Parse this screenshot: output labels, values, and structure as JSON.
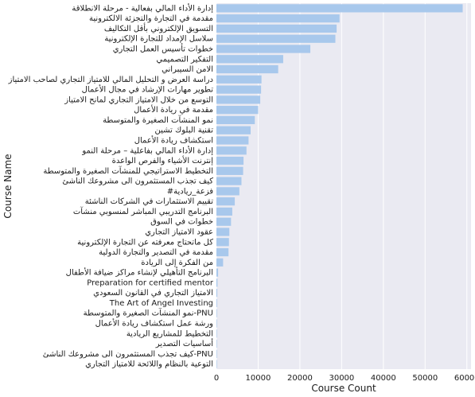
{
  "chart_data": {
    "type": "bar",
    "orientation": "horizontal",
    "title": "",
    "xlabel": "Course Count",
    "ylabel": "Course Name",
    "xlim": [
      0,
      61000
    ],
    "xticks": [
      0,
      10000,
      20000,
      30000,
      40000,
      50000,
      60000
    ],
    "grid": true,
    "bar_color": "#a8c8ec",
    "background": "#eaeaf2",
    "categories": [
      "إدارة الأداء المالي بفعالية - مرحلة الانطلاقة",
      "مقدمة في التجارة والتجزئة الالكترونية",
      "التسويق الإلكتروني بأقل التكاليف",
      "سلاسل الإمداد للتجارة الإلكترونية",
      "خطوات تأسيس العمل التجاري",
      "التفكير التصميمي",
      "الامن السيبراني",
      "دراسة العرض و التحليل المالي للامتياز التجاري لصاحب الامتياز",
      "تطوير مهارات الإرشاد في مجال الأعمال",
      "التوسع من خلال الامتياز التجاري لمانح الامتياز",
      "مقدمة في ريادة الأعمال",
      "نمو المنشآت الصغيرة والمتوسطة",
      "تقنية البلوك تشين",
      "استكشاف ريادة الأعمال",
      "إدارة الأداء المالي بفاعلية – مرحلة النمو",
      "إنترنت الأشياء والفرص الواعدة",
      "التخطيط الاستراتيجي للمنشآت الصغيرة والمتوسطة",
      "كيف تجذب المستثمرون الى مشروعك الناشئ",
      "#فزعة_ريادية",
      "تقييم الاستثمارات في الشركات الناشئة",
      "البرنامج التدريبي المباشر لمنسوبي منشآت",
      "خطوات في السوق",
      "عقود الامتياز التجاري",
      "كل ماتحتاج معرفته عن التجارة الإلكترونية",
      "مقدمة في التصدير والتجارة الدولية",
      "من الفكرة إلى الريادة",
      "البرنامج التأهيلي لإنشاء مراكز ضيافة الأطفال",
      "Preparation for certified mentor",
      "الامتياز التجاري في القانون السعودي",
      "The Art of Angel Investing",
      "نمو المنشآت الصغيرة والمتوسطة-PNU",
      "ورشة عمل استكشاف ريادة الأعمال",
      "التخطيط للمشاريع الريادية",
      "أساسيات التصدير",
      "كيف تجذب المستثمرون الى مشروعك الناشئ-PNU",
      "التوعية بالنظام واللائحة للامتياز التجاري"
    ],
    "values": [
      59000,
      29500,
      28800,
      28500,
      22500,
      16000,
      14800,
      10800,
      10700,
      10500,
      10000,
      9200,
      8200,
      7700,
      7200,
      6500,
      6400,
      6000,
      5500,
      4400,
      3800,
      3500,
      3100,
      3000,
      2900,
      1600,
      400,
      250,
      200,
      150,
      120,
      100,
      90,
      80,
      60,
      40
    ]
  }
}
